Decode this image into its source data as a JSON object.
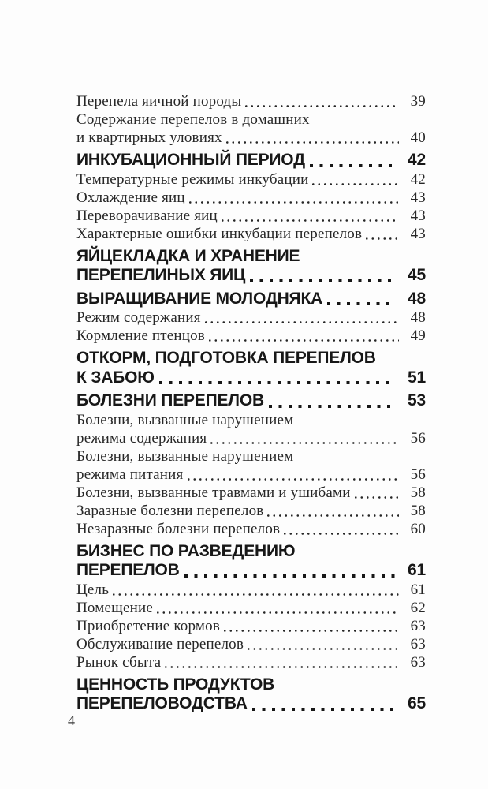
{
  "page": {
    "folio": "4",
    "background": "#fdfdfd",
    "text_color": "#272727",
    "heading_color": "#171717"
  },
  "toc": {
    "entries": [
      {
        "style": "sub",
        "lines": [
          "Перепела яичной породы"
        ],
        "page": "39"
      },
      {
        "style": "sub",
        "lines": [
          "Содержание перепелов в домашних",
          "и квартирных уловиях"
        ],
        "page": "40"
      },
      {
        "style": "chapter",
        "lines": [
          "ИНКУБАЦИОННЫЙ ПЕРИОД"
        ],
        "page": "42"
      },
      {
        "style": "sub",
        "lines": [
          "Температурные режимы инкубации"
        ],
        "page": "42"
      },
      {
        "style": "sub",
        "lines": [
          "Охлаждение яиц"
        ],
        "page": "43"
      },
      {
        "style": "sub",
        "lines": [
          "Переворачивание яиц"
        ],
        "page": "43"
      },
      {
        "style": "sub",
        "lines": [
          "Характерные ошибки инкубации перепелов"
        ],
        "page": "43"
      },
      {
        "style": "chapter",
        "lines": [
          "ЯЙЦЕКЛАДКА И ХРАНЕНИЕ",
          "ПЕРЕПЕЛИНЫХ ЯИЦ"
        ],
        "page": "45"
      },
      {
        "style": "chapter",
        "lines": [
          "ВЫРАЩИВАНИЕ МОЛОДНЯКА"
        ],
        "page": "48"
      },
      {
        "style": "sub",
        "lines": [
          "Режим содержания"
        ],
        "page": "48"
      },
      {
        "style": "sub",
        "lines": [
          "Кормление птенцов"
        ],
        "page": "49"
      },
      {
        "style": "chapter",
        "lines": [
          "ОТКОРМ, ПОДГОТОВКА ПЕРЕПЕЛОВ",
          "К ЗАБОЮ"
        ],
        "page": "51"
      },
      {
        "style": "chapter",
        "lines": [
          "БОЛЕЗНИ ПЕРЕПЕЛОВ"
        ],
        "page": "53"
      },
      {
        "style": "sub",
        "lines": [
          "Болезни, вызванные нарушением",
          "режима содержания"
        ],
        "page": "56"
      },
      {
        "style": "sub",
        "lines": [
          "Болезни, вызванные нарушением",
          "режима питания"
        ],
        "page": "56"
      },
      {
        "style": "sub",
        "lines": [
          "Болезни, вызванные травмами и ушибами"
        ],
        "page": "58"
      },
      {
        "style": "sub",
        "lines": [
          "Заразные болезни перепелов"
        ],
        "page": "58"
      },
      {
        "style": "sub",
        "lines": [
          "Незаразные болезни перепелов"
        ],
        "page": "60"
      },
      {
        "style": "chapter",
        "lines": [
          "БИЗНЕС ПО РАЗВЕДЕНИЮ",
          "ПЕРЕПЕЛОВ"
        ],
        "page": "61"
      },
      {
        "style": "sub",
        "lines": [
          "Цель"
        ],
        "page": "61"
      },
      {
        "style": "sub",
        "lines": [
          "Помещение"
        ],
        "page": "62"
      },
      {
        "style": "sub",
        "lines": [
          "Приобретение кормов"
        ],
        "page": "63"
      },
      {
        "style": "sub",
        "lines": [
          "Обслуживание перепелов"
        ],
        "page": "63"
      },
      {
        "style": "sub",
        "lines": [
          "Рынок сбыта"
        ],
        "page": "63"
      },
      {
        "style": "chapter",
        "lines": [
          "ЦЕННОСТЬ ПРОДУКТОВ",
          "ПЕРЕПЕЛОВОДСТВА"
        ],
        "page": "65"
      }
    ]
  }
}
